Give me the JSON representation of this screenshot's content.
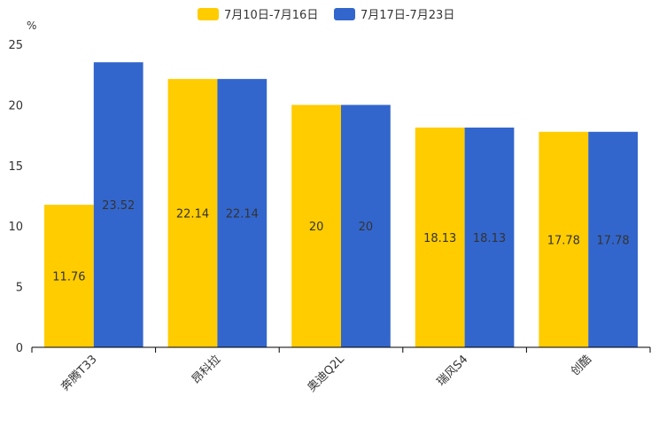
{
  "chart_data": {
    "type": "bar",
    "title": "",
    "ylabel": "%",
    "xlabel": "",
    "ylim": [
      0,
      25
    ],
    "yticks": [
      0,
      5,
      10,
      15,
      20,
      25
    ],
    "grid": false,
    "legend_position": "top-center",
    "categories": [
      "奔腾T33",
      "昂科拉",
      "奥迪Q2L",
      "瑞风S4",
      "创酷"
    ],
    "series": [
      {
        "name": "7月10日-7月16日",
        "color": "#FFCC00",
        "values": [
          11.76,
          22.14,
          20,
          18.13,
          17.78
        ]
      },
      {
        "name": "7月17日-7月23日",
        "color": "#3366CC",
        "values": [
          23.52,
          22.14,
          20,
          18.13,
          17.78
        ]
      }
    ]
  }
}
